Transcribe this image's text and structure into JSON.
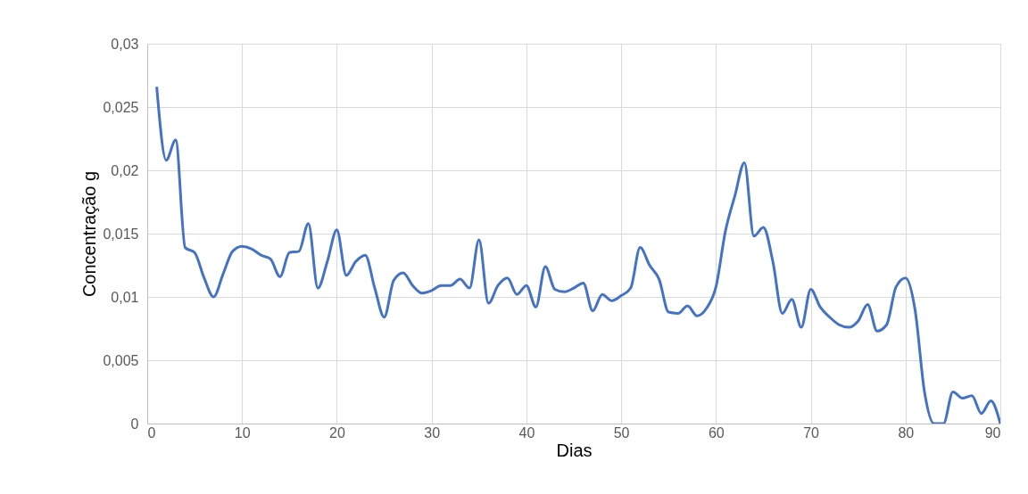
{
  "chart_data": {
    "type": "line",
    "xlabel": "Dias",
    "ylabel": "Concentração g",
    "x": [
      1,
      2,
      3,
      4,
      5,
      6,
      7,
      8,
      9,
      10,
      11,
      12,
      13,
      14,
      15,
      16,
      17,
      18,
      19,
      20,
      21,
      22,
      23,
      24,
      25,
      26,
      27,
      28,
      29,
      30,
      31,
      32,
      33,
      34,
      35,
      36,
      37,
      38,
      39,
      40,
      41,
      42,
      43,
      44,
      45,
      46,
      47,
      48,
      49,
      50,
      51,
      52,
      53,
      54,
      55,
      56,
      57,
      58,
      59,
      60,
      61,
      62,
      63,
      64,
      65,
      66,
      67,
      68,
      69,
      70,
      71,
      72,
      73,
      74,
      75,
      76,
      77,
      78,
      79,
      80,
      81,
      82,
      83,
      84,
      85,
      86,
      87,
      88,
      89,
      90
    ],
    "series": [
      {
        "color": "#4472c4",
        "values": [
          0.0266,
          0.0208,
          0.0224,
          0.0139,
          0.0135,
          0.0115,
          0.01,
          0.0118,
          0.0136,
          0.014,
          0.0138,
          0.0133,
          0.013,
          0.0116,
          0.0135,
          0.0136,
          0.0158,
          0.0107,
          0.0128,
          0.0153,
          0.0117,
          0.0128,
          0.0133,
          0.0107,
          0.0084,
          0.0113,
          0.0119,
          0.0109,
          0.0103,
          0.0105,
          0.0109,
          0.0109,
          0.0114,
          0.0107,
          0.0145,
          0.0095,
          0.0109,
          0.0115,
          0.0102,
          0.0109,
          0.0092,
          0.0124,
          0.0106,
          0.0104,
          0.0107,
          0.0111,
          0.0089,
          0.0102,
          0.0097,
          0.0101,
          0.0107,
          0.0139,
          0.0125,
          0.0114,
          0.0088,
          0.0087,
          0.0093,
          0.0085,
          0.0091,
          0.0108,
          0.0152,
          0.018,
          0.0206,
          0.0148,
          0.0155,
          0.0128,
          0.0087,
          0.0098,
          0.0076,
          0.0106,
          0.0092,
          0.0084,
          0.0078,
          0.0076,
          0.0081,
          0.0094,
          0.0073,
          0.0078,
          0.0108,
          0.0115,
          0.009,
          0.0025,
          0.0,
          0.0,
          0.0025,
          0.002,
          0.0022,
          0.0008,
          0.0018,
          0.0
        ]
      }
    ],
    "xlim": [
      0,
      90
    ],
    "xticks": [
      0,
      10,
      20,
      30,
      40,
      50,
      60,
      70,
      80,
      90
    ],
    "ylim": [
      0,
      0.03
    ],
    "yticks": [
      0,
      {
        "value": 0.005,
        "label": "0,005"
      },
      {
        "value": 0.01,
        "label": "0,01"
      },
      {
        "value": 0.015,
        "label": "0,015"
      },
      {
        "value": 0.02,
        "label": "0,02"
      },
      {
        "value": 0.025,
        "label": "0,025"
      },
      {
        "value": 0.03,
        "label": "0,03"
      }
    ],
    "grid": true,
    "marker": "none",
    "line_style": "solid"
  }
}
